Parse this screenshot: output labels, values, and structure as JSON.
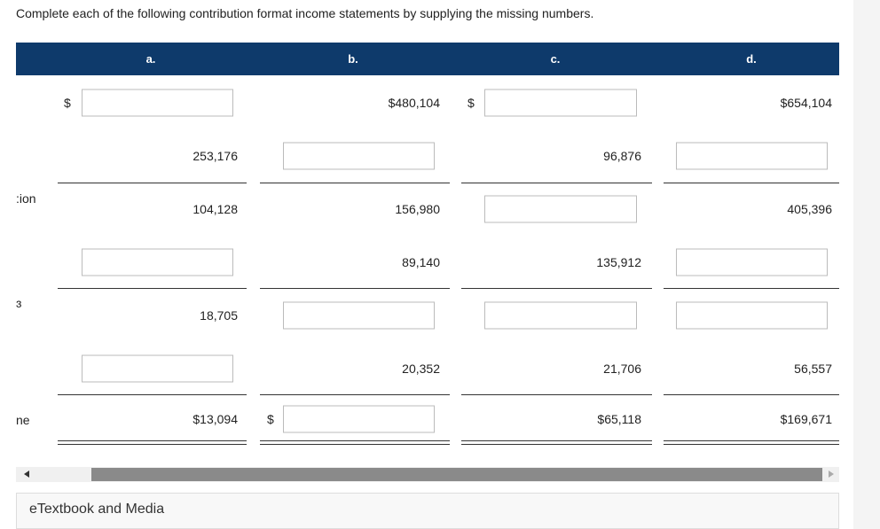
{
  "instruction": "Complete each of the following contribution format income statements by supplying the missing numbers.",
  "table": {
    "columns": [
      "a.",
      "b.",
      "c.",
      "d."
    ],
    "rows": [
      {
        "cells": [
          {
            "input": true,
            "dollar": "$"
          },
          {
            "text": "$480,104"
          },
          {
            "input": true,
            "dollar": "$"
          },
          {
            "text": "$654,104"
          }
        ]
      },
      {
        "cells": [
          {
            "text": "253,176"
          },
          {
            "input": true
          },
          {
            "text": "96,876"
          },
          {
            "input": true
          }
        ]
      },
      {
        "label": ":ion",
        "cells": [
          {
            "text": "104,128"
          },
          {
            "text": "156,980"
          },
          {
            "input": true
          },
          {
            "text": "405,396"
          }
        ]
      },
      {
        "cells": [
          {
            "input": true
          },
          {
            "text": "89,140"
          },
          {
            "text": "135,912"
          },
          {
            "input": true
          }
        ]
      },
      {
        "label": "ɜ",
        "cells": [
          {
            "text": "18,705"
          },
          {
            "input": true
          },
          {
            "input": true
          },
          {
            "input": true
          }
        ]
      },
      {
        "cells": [
          {
            "input": true
          },
          {
            "text": "20,352"
          },
          {
            "text": "21,706"
          },
          {
            "text": "56,557"
          }
        ]
      },
      {
        "label": "ne",
        "cells": [
          {
            "text": "$13,094"
          },
          {
            "input": true,
            "dollar": "$"
          },
          {
            "text": "$65,118"
          },
          {
            "text": "$169,671"
          }
        ]
      }
    ]
  },
  "footer": {
    "title": "eTextbook and Media"
  }
}
